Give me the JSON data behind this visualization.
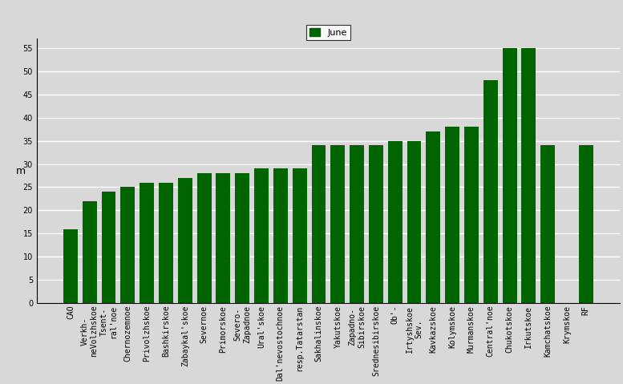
{
  "categories": [
    "CAO",
    "Verkh-\nneVolzhskoe",
    "Tsent-\nral'noe",
    "Chernozemnoe",
    "Privolzhskoe",
    "Bashkirskoe",
    "Zabaykal'skoe",
    "Severnoe",
    "Primorskoe",
    "Severo-\nZapadnoe",
    "Ural'skoe",
    "Dal'nevostochnoe",
    "resp.Tatarstan",
    "Sakhalinskoe",
    "Yakutskoe",
    "Zapadno-\nSibirskoe",
    "Srednesibirskoe",
    "Ob'-",
    "Irtyshskoe-\nSev.",
    "Kavkazskoe",
    "Kolymskoe",
    "Murmanskoe",
    "Central'noe",
    "Chukotskoe",
    "Irkutskoe",
    "Kamchatskoe",
    "Krymskoe",
    "RF"
  ],
  "values": [
    16,
    22,
    24,
    25,
    26,
    26,
    27,
    28,
    28,
    28,
    29,
    29,
    29,
    34,
    34,
    34,
    34,
    35,
    35,
    37,
    38,
    38,
    48,
    55,
    55,
    34,
    0,
    34
  ],
  "bar_color": "#006400",
  "legend_label": "June",
  "ylabel": "m",
  "ylim": [
    0,
    57
  ],
  "yticks": [
    0,
    5,
    10,
    15,
    20,
    25,
    30,
    35,
    40,
    45,
    50,
    55
  ],
  "background_color": "#d8d8d8",
  "plot_area_color": "#d8d8d8",
  "grid_color": "white",
  "tick_fontsize": 7,
  "ylabel_fontsize": 9,
  "legend_fontsize": 8
}
